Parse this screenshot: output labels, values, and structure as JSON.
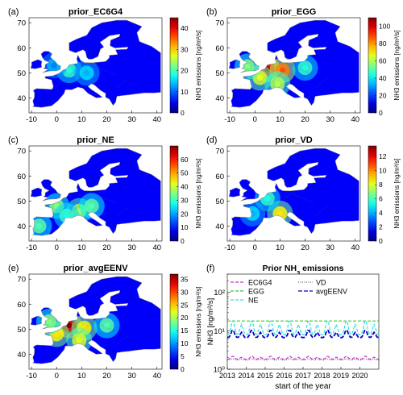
{
  "chart_data": [
    {
      "type": "heatmap",
      "panel_letter": "(a)",
      "title": "prior_EC6G4",
      "xticks": [
        -10,
        0,
        10,
        20,
        30,
        40
      ],
      "yticks": [
        40,
        50,
        60,
        70
      ],
      "xlim": [
        -11,
        42
      ],
      "ylim": [
        34,
        72
      ],
      "colorbar": {
        "min": 0,
        "max": 45,
        "ticks": [
          0,
          10,
          20,
          30,
          40
        ],
        "label": "NH3 emissions [ng/m²/s]",
        "colormap": "jet"
      },
      "hotspots": [
        {
          "x": 5,
          "y": 51,
          "level": 0.35
        },
        {
          "x": 12,
          "y": 50,
          "level": 0.25
        },
        {
          "x": -1,
          "y": 53,
          "level": 0.2
        }
      ]
    },
    {
      "type": "heatmap",
      "panel_letter": "(b)",
      "title": "prior_EGG",
      "xticks": [
        -10,
        0,
        10,
        20,
        30,
        40
      ],
      "yticks": [
        40,
        50,
        60,
        70
      ],
      "xlim": [
        -11,
        42
      ],
      "ylim": [
        34,
        72
      ],
      "colorbar": {
        "min": 0,
        "max": 110,
        "ticks": [
          0,
          20,
          40,
          60,
          80,
          100
        ],
        "label": "NH3 emissions [ng/m²/s]",
        "colormap": "jet"
      },
      "hotspots": [
        {
          "x": 5,
          "y": 51.5,
          "level": 0.9
        },
        {
          "x": 11,
          "y": 51,
          "level": 0.75
        },
        {
          "x": 2,
          "y": 48,
          "level": 0.55
        },
        {
          "x": 9,
          "y": 45.5,
          "level": 0.5
        },
        {
          "x": -3,
          "y": 52.5,
          "level": 0.45
        },
        {
          "x": 20,
          "y": 52,
          "level": 0.35
        }
      ]
    },
    {
      "type": "heatmap",
      "panel_letter": "(c)",
      "title": "prior_NE",
      "xticks": [
        -10,
        0,
        10,
        20,
        30,
        40
      ],
      "yticks": [
        40,
        50,
        60,
        70
      ],
      "xlim": [
        -11,
        42
      ],
      "ylim": [
        34,
        72
      ],
      "colorbar": {
        "min": 0,
        "max": 70,
        "ticks": [
          0,
          10,
          20,
          30,
          40,
          50,
          60
        ],
        "label": "NH3 emissions [ng/m²/s]",
        "colormap": "jet"
      },
      "hotspots": [
        {
          "x": 0,
          "y": 48,
          "level": 0.45
        },
        {
          "x": 9,
          "y": 46,
          "level": 0.5
        },
        {
          "x": -7,
          "y": 40,
          "level": 0.4
        },
        {
          "x": 14,
          "y": 48,
          "level": 0.4
        },
        {
          "x": 4,
          "y": 44,
          "level": 0.35
        }
      ]
    },
    {
      "type": "heatmap",
      "panel_letter": "(d)",
      "title": "prior_VD",
      "xticks": [
        -10,
        0,
        10,
        20,
        30,
        40
      ],
      "yticks": [
        40,
        50,
        60,
        70
      ],
      "xlim": [
        -11,
        42
      ],
      "ylim": [
        34,
        72
      ],
      "colorbar": {
        "min": 0,
        "max": 13.5,
        "ticks": [
          0,
          2,
          4,
          6,
          8,
          10,
          12
        ],
        "label": "NH3 emissions [ng/m²/s]",
        "colormap": "jet"
      },
      "hotspots": [
        {
          "x": 10,
          "y": 45,
          "level": 0.6
        },
        {
          "x": 5,
          "y": 51,
          "level": 0.35
        },
        {
          "x": -1,
          "y": 45,
          "level": 0.25
        }
      ]
    },
    {
      "type": "heatmap",
      "panel_letter": "(e)",
      "title": "prior_avgEENV",
      "xticks": [
        -10,
        0,
        10,
        20,
        30,
        40
      ],
      "yticks": [
        40,
        50,
        60,
        70
      ],
      "xlim": [
        -11,
        42
      ],
      "ylim": [
        34,
        72
      ],
      "colorbar": {
        "min": 0,
        "max": 37,
        "ticks": [
          0,
          5,
          10,
          15,
          20,
          25,
          30,
          35
        ],
        "label": "NH3 emissions [ng/m²/s]",
        "colormap": "jet"
      },
      "hotspots": [
        {
          "x": 5,
          "y": 51.5,
          "level": 0.95
        },
        {
          "x": 0,
          "y": 48,
          "level": 0.6
        },
        {
          "x": 11,
          "y": 50.5,
          "level": 0.6
        },
        {
          "x": 9,
          "y": 45.5,
          "level": 0.55
        },
        {
          "x": 20,
          "y": 51.5,
          "level": 0.4
        },
        {
          "x": -3,
          "y": 53,
          "level": 0.45
        }
      ]
    },
    {
      "type": "line",
      "panel_letter": "(f)",
      "title_main": "Prior NH",
      "title_sub": "3",
      "title_tail": " emissions",
      "xlabel": "start of the year",
      "ylabel": "NH3 [ng/m²/s]",
      "yscale": "log",
      "xlim": [
        2013,
        2021
      ],
      "ylim": [
        1,
        300
      ],
      "xticks": [
        2013,
        2014,
        2015,
        2016,
        2017,
        2018,
        2019,
        2020
      ],
      "yticks": [
        1,
        10,
        100
      ],
      "ytick_labels": [
        "10⁰",
        "10¹",
        "10²"
      ],
      "legend": [
        {
          "label": "EC6G4",
          "color": "#cc33cc",
          "dash": "4,2"
        },
        {
          "label": "VD",
          "color": "#666666",
          "dash": "1,1.5"
        },
        {
          "label": "EGG",
          "color": "#33cc33",
          "dash": "4,2"
        },
        {
          "label": "avgEENV",
          "color": "#0000cc",
          "dash": "5,2"
        },
        {
          "label": "NE",
          "color": "#33dddd",
          "dash": "4,2"
        }
      ],
      "series": [
        {
          "name": "EC6G4",
          "pattern": "seasonal",
          "base": 2.0,
          "amp": 0.12,
          "color": "#cc33cc",
          "dash": "4,2",
          "width": 1.2
        },
        {
          "name": "VD",
          "pattern": "seasonal",
          "base": 1.8,
          "amp": 0.05,
          "color": "#666666",
          "dash": "1,1.5",
          "width": 1.2
        },
        {
          "name": "EGG",
          "pattern": "flat",
          "base": 18,
          "amp": 0.0,
          "color": "#33cc33",
          "dash": "4,2",
          "width": 1.2
        },
        {
          "name": "avgEENV",
          "pattern": "seasonal",
          "base": 8.5,
          "amp": 0.3,
          "color": "#0000cc",
          "dash": "5,2",
          "width": 1.8
        },
        {
          "name": "NE",
          "pattern": "seasonal",
          "base": 13,
          "amp": 0.55,
          "color": "#33dddd",
          "dash": "4,2",
          "width": 1.2
        }
      ]
    }
  ]
}
